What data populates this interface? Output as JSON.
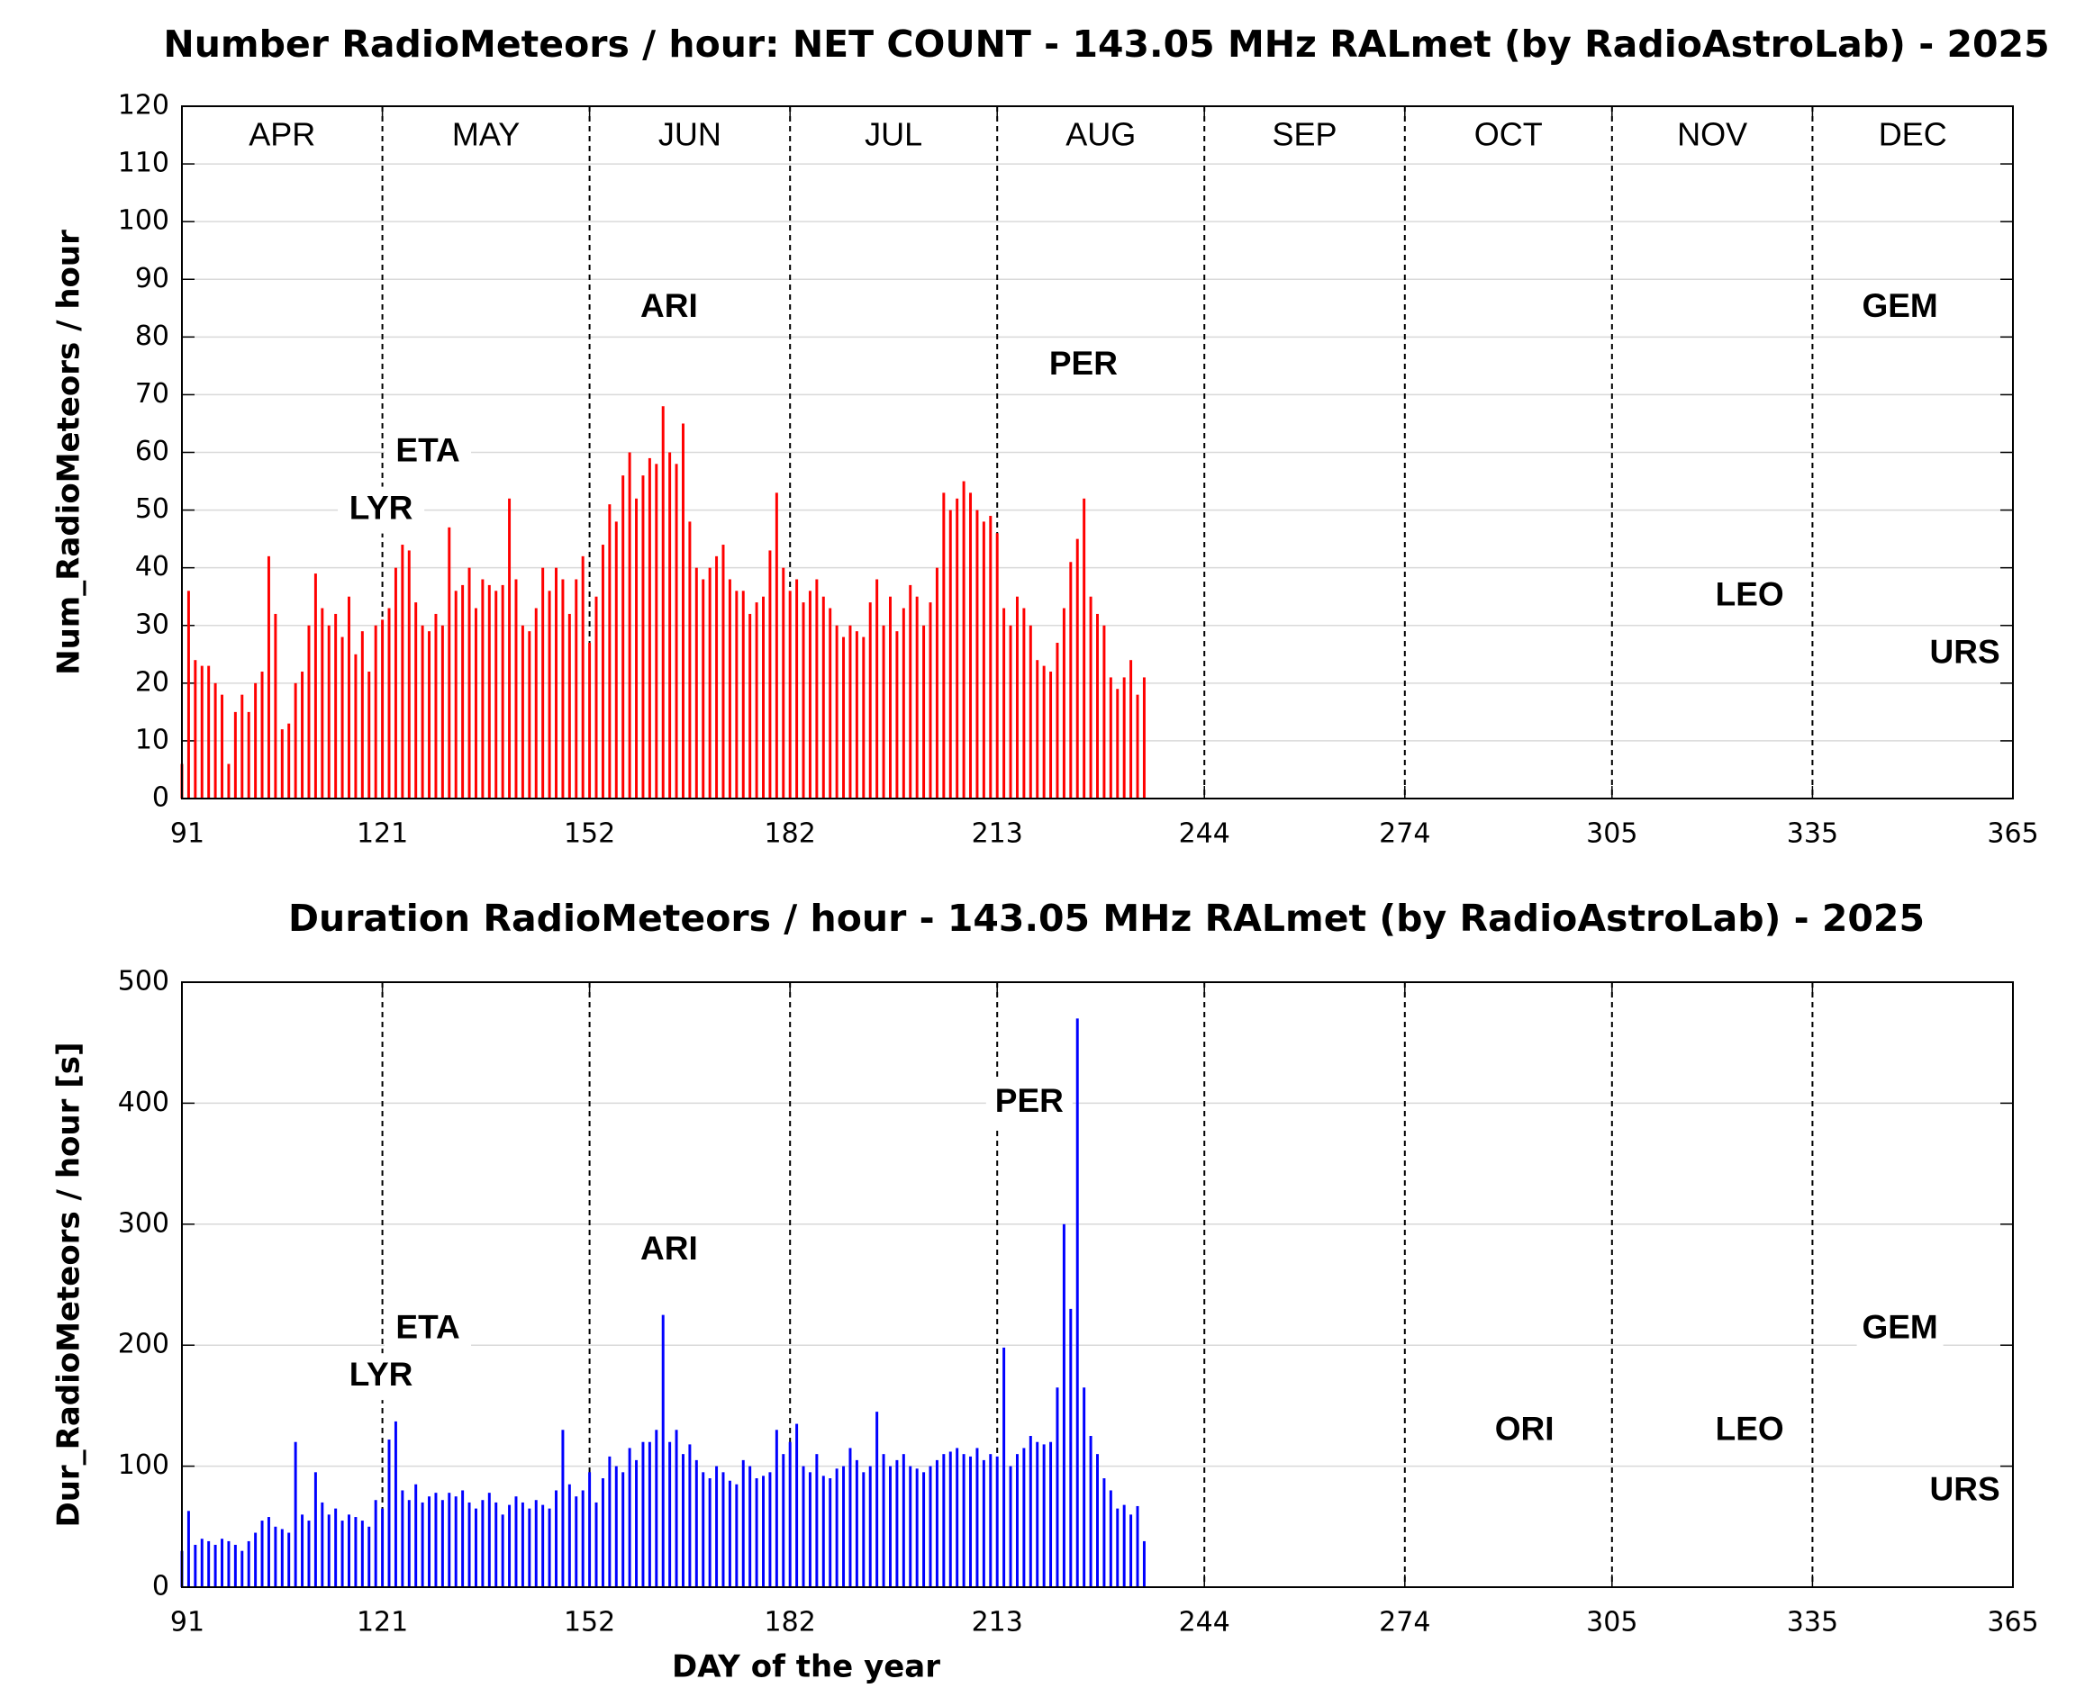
{
  "chart_data": [
    {
      "type": "bar",
      "title": "Number RadioMeteors / hour: NET COUNT - 143.05 MHz RALmet (by RadioAstroLab) - 2025",
      "y_label": "Num_RadioMeteors / hour",
      "color": "#ff0000",
      "xlim": [
        91,
        365
      ],
      "xticks": [
        91,
        121,
        152,
        182,
        213,
        244,
        274,
        305,
        335,
        365
      ],
      "ylim": [
        0,
        120
      ],
      "yticks": [
        0,
        10,
        20,
        30,
        40,
        50,
        60,
        70,
        80,
        90,
        100,
        110,
        120
      ],
      "grid": true,
      "month_labels": [
        "APR",
        "MAY",
        "JUN",
        "JUL",
        "AUG",
        "SEP",
        "OCT",
        "NOV",
        "DEC"
      ],
      "x": [
        91,
        92,
        93,
        94,
        95,
        96,
        97,
        98,
        99,
        100,
        101,
        102,
        103,
        104,
        105,
        106,
        107,
        108,
        109,
        110,
        111,
        112,
        113,
        114,
        115,
        116,
        117,
        118,
        119,
        120,
        121,
        122,
        123,
        124,
        125,
        126,
        127,
        128,
        129,
        130,
        131,
        132,
        133,
        134,
        135,
        136,
        137,
        138,
        139,
        140,
        141,
        142,
        143,
        144,
        145,
        146,
        147,
        148,
        149,
        150,
        151,
        152,
        153,
        154,
        155,
        156,
        157,
        158,
        159,
        160,
        161,
        162,
        163,
        164,
        165,
        166,
        167,
        168,
        169,
        170,
        171,
        172,
        173,
        174,
        175,
        176,
        177,
        178,
        179,
        180,
        181,
        182,
        183,
        184,
        185,
        186,
        187,
        188,
        189,
        190,
        191,
        192,
        193,
        194,
        195,
        196,
        197,
        198,
        199,
        200,
        201,
        202,
        203,
        204,
        205,
        206,
        207,
        208,
        209,
        210,
        211,
        212,
        213,
        214,
        215,
        216,
        217,
        218,
        219,
        220,
        221,
        222,
        223,
        224,
        225,
        226,
        227,
        228,
        229,
        230,
        231,
        232,
        233,
        234,
        235
      ],
      "values": [
        6,
        36,
        24,
        23,
        23,
        20,
        18,
        6,
        15,
        18,
        15,
        20,
        22,
        42,
        32,
        12,
        13,
        20,
        22,
        30,
        39,
        33,
        30,
        32,
        28,
        35,
        25,
        29,
        22,
        30,
        31,
        33,
        40,
        44,
        43,
        34,
        30,
        29,
        32,
        30,
        47,
        36,
        37,
        40,
        33,
        38,
        37,
        36,
        37,
        52,
        38,
        30,
        29,
        33,
        40,
        36,
        40,
        38,
        32,
        38,
        42,
        27,
        35,
        44,
        51,
        48,
        56,
        60,
        52,
        56,
        59,
        58,
        68,
        60,
        58,
        65,
        48,
        40,
        38,
        40,
        42,
        44,
        38,
        36,
        36,
        32,
        34,
        35,
        43,
        53,
        40,
        36,
        38,
        34,
        36,
        38,
        35,
        33,
        30,
        28,
        30,
        29,
        28,
        34,
        38,
        30,
        35,
        29,
        33,
        37,
        35,
        30,
        34,
        40,
        53,
        50,
        52,
        55,
        53,
        50,
        48,
        49,
        46,
        33,
        30,
        35,
        33,
        30,
        24,
        23,
        22,
        27,
        33,
        41,
        45,
        52,
        35,
        32,
        30,
        21,
        19,
        21,
        24,
        18,
        21
      ],
      "annotations": [
        {
          "text": "LYR",
          "x": 120.8,
          "y": 50
        },
        {
          "text": "ETA",
          "x": 127.8,
          "y": 60
        },
        {
          "text": "ARI",
          "x": 163.9,
          "y": 85
        },
        {
          "text": "PER",
          "x": 225.9,
          "y": 75
        },
        {
          "text": "LEO",
          "x": 325.6,
          "y": 35
        },
        {
          "text": "GEM",
          "x": 348.1,
          "y": 85
        },
        {
          "text": "URS",
          "x": 357.8,
          "y": 25
        }
      ]
    },
    {
      "type": "bar",
      "title": "Duration RadioMeteors / hour - 143.05 MHz RALmet (by RadioAstroLab) - 2025",
      "y_label": "Dur_RadioMeteors / hour [s]",
      "x_label": "DAY of the year",
      "color": "#0000ff",
      "xlim": [
        91,
        365
      ],
      "xticks": [
        91,
        121,
        152,
        182,
        213,
        244,
        274,
        305,
        335,
        365
      ],
      "ylim": [
        0,
        500
      ],
      "yticks": [
        0,
        100,
        200,
        300,
        400,
        500
      ],
      "grid": true,
      "x": [
        91,
        92,
        93,
        94,
        95,
        96,
        97,
        98,
        99,
        100,
        101,
        102,
        103,
        104,
        105,
        106,
        107,
        108,
        109,
        110,
        111,
        112,
        113,
        114,
        115,
        116,
        117,
        118,
        119,
        120,
        121,
        122,
        123,
        124,
        125,
        126,
        127,
        128,
        129,
        130,
        131,
        132,
        133,
        134,
        135,
        136,
        137,
        138,
        139,
        140,
        141,
        142,
        143,
        144,
        145,
        146,
        147,
        148,
        149,
        150,
        151,
        152,
        153,
        154,
        155,
        156,
        157,
        158,
        159,
        160,
        161,
        162,
        163,
        164,
        165,
        166,
        167,
        168,
        169,
        170,
        171,
        172,
        173,
        174,
        175,
        176,
        177,
        178,
        179,
        180,
        181,
        182,
        183,
        184,
        185,
        186,
        187,
        188,
        189,
        190,
        191,
        192,
        193,
        194,
        195,
        196,
        197,
        198,
        199,
        200,
        201,
        202,
        203,
        204,
        205,
        206,
        207,
        208,
        209,
        210,
        211,
        212,
        213,
        214,
        215,
        216,
        217,
        218,
        219,
        220,
        221,
        222,
        223,
        224,
        225,
        226,
        227,
        228,
        229,
        230,
        231,
        232,
        233,
        234,
        235
      ],
      "values": [
        30,
        63,
        35,
        40,
        38,
        35,
        40,
        38,
        35,
        30,
        38,
        45,
        55,
        58,
        50,
        48,
        45,
        120,
        60,
        55,
        95,
        70,
        60,
        65,
        55,
        60,
        58,
        55,
        50,
        72,
        65,
        122,
        137,
        80,
        72,
        85,
        70,
        75,
        78,
        72,
        78,
        75,
        80,
        70,
        65,
        72,
        78,
        70,
        60,
        68,
        75,
        70,
        65,
        72,
        68,
        65,
        80,
        130,
        85,
        75,
        80,
        95,
        70,
        90,
        108,
        100,
        95,
        115,
        105,
        120,
        120,
        130,
        225,
        120,
        130,
        110,
        118,
        105,
        95,
        90,
        100,
        95,
        88,
        85,
        105,
        100,
        90,
        92,
        95,
        130,
        110,
        120,
        135,
        100,
        95,
        110,
        92,
        90,
        98,
        100,
        115,
        105,
        95,
        100,
        145,
        110,
        100,
        105,
        110,
        100,
        98,
        95,
        100,
        105,
        110,
        112,
        115,
        110,
        108,
        115,
        105,
        110,
        108,
        198,
        100,
        110,
        115,
        125,
        120,
        118,
        120,
        165,
        300,
        230,
        470,
        165,
        125,
        110,
        90,
        80,
        65,
        68,
        60,
        67,
        38
      ],
      "annotations": [
        {
          "text": "LYR",
          "x": 120.8,
          "y": 174
        },
        {
          "text": "ETA",
          "x": 127.8,
          "y": 213
        },
        {
          "text": "ARI",
          "x": 163.9,
          "y": 278
        },
        {
          "text": "PER",
          "x": 217.8,
          "y": 400
        },
        {
          "text": "ORI",
          "x": 291.9,
          "y": 129
        },
        {
          "text": "LEO",
          "x": 325.6,
          "y": 129
        },
        {
          "text": "GEM",
          "x": 348.1,
          "y": 213
        },
        {
          "text": "URS",
          "x": 357.8,
          "y": 79
        }
      ]
    }
  ]
}
